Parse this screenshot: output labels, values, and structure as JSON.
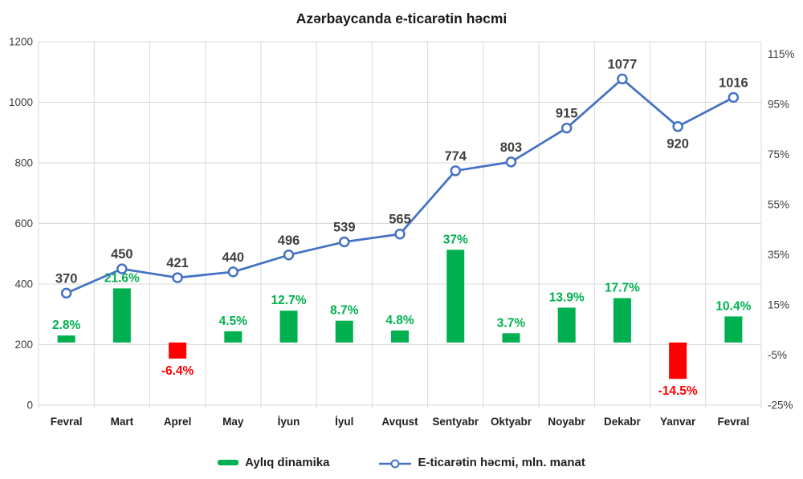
{
  "title": "Azərbaycanda e-ticarətin həcmi",
  "colors": {
    "line": "#4472C4",
    "marker_fill": "#ffffff",
    "bar_positive": "#00B050",
    "bar_negative": "#FF0000",
    "grid": "#D9D9D9",
    "value_label": "#404040",
    "axis_label": "#3b3b3b",
    "category_label": "#1f1f1f",
    "background": "#ffffff"
  },
  "chart_data": {
    "type": "combo",
    "title": "Azərbaycanda e-ticarətin həcmi",
    "categories": [
      "Fevral",
      "Mart",
      "Aprel",
      "May",
      "İyun",
      "İyul",
      "Avqust",
      "Sentyabr",
      "Oktyabr",
      "Noyabr",
      "Dekabr",
      "Yanvar",
      "Fevral"
    ],
    "series": [
      {
        "name": "Aylıq dinamika",
        "type": "bar",
        "axis": "right",
        "values": [
          2.8,
          21.6,
          -6.4,
          4.5,
          12.7,
          8.7,
          4.8,
          37,
          3.7,
          13.9,
          17.7,
          -14.5,
          10.4
        ],
        "labels": [
          "2.8%",
          "21.6%",
          "-6.4%",
          "4.5%",
          "12.7%",
          "8.7%",
          "4.8%",
          "37%",
          "3.7%",
          "13.9%",
          "17.7%",
          "-14.5%",
          "10.4%"
        ]
      },
      {
        "name": "E-ticarətin həcmi, mln. manat",
        "type": "line",
        "axis": "left",
        "values": [
          370,
          450,
          421,
          440,
          496,
          539,
          565,
          774,
          803,
          915,
          1077,
          920,
          1016
        ],
        "labels": [
          "370",
          "450",
          "421",
          "440",
          "496",
          "539",
          "565",
          "774",
          "803",
          "915",
          "1077",
          "920",
          "1016"
        ],
        "labels_below": [
          false,
          false,
          false,
          false,
          false,
          false,
          false,
          false,
          false,
          false,
          false,
          true,
          false
        ]
      }
    ],
    "left_axis": {
      "min": 0,
      "max": 1200,
      "tick_values": [
        0,
        200,
        400,
        600,
        800,
        1000,
        1200
      ],
      "tick_labels": [
        "0",
        "200",
        "400",
        "600",
        "800",
        "1000",
        "1200"
      ]
    },
    "right_axis": {
      "min": -25,
      "max": 120,
      "tick_values": [
        -25,
        -5,
        15,
        35,
        55,
        75,
        95,
        115
      ],
      "tick_labels": [
        "-25%",
        "-5%",
        "15%",
        "35%",
        "55%",
        "75%",
        "95%",
        "115%"
      ]
    },
    "grid": true,
    "legend_position": "bottom"
  },
  "legend": {
    "items": [
      {
        "label": "Aylıq dinamika",
        "marker": "bar",
        "color": "#00B050"
      },
      {
        "label": "E-ticarətin həcmi, mln. manat",
        "marker": "line-circle",
        "color": "#4472C4"
      }
    ]
  }
}
